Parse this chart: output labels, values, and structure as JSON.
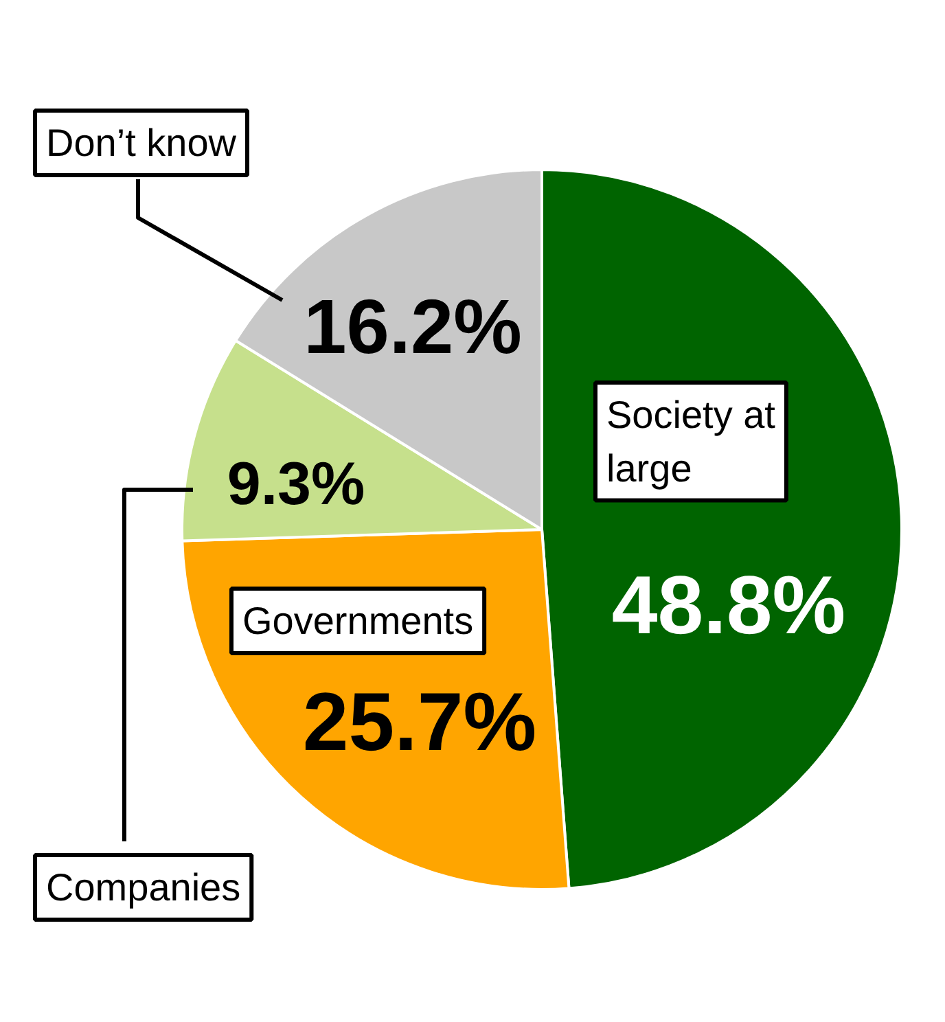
{
  "chart_data": {
    "type": "pie",
    "categories": [
      "Society at large",
      "Governments",
      "Companies",
      "Don’t know"
    ],
    "values": [
      48.8,
      25.7,
      9.3,
      16.2
    ],
    "colors": [
      "#006400",
      "#ffa500",
      "#c6e08c",
      "#c8c8c8"
    ],
    "value_labels": [
      "48.8%",
      "25.7%",
      "9.3%",
      "16.2%"
    ]
  }
}
